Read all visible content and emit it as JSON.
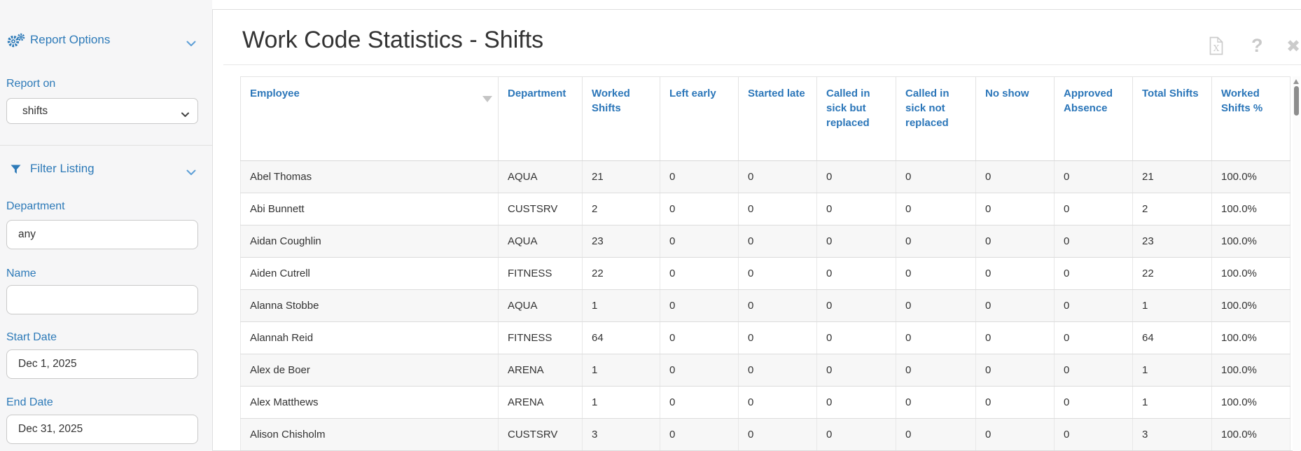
{
  "sidebar": {
    "report_options": {
      "label": "Report Options",
      "icon": "gears-icon"
    },
    "filter_listing": {
      "label": "Filter Listing",
      "icon": "filter-icon"
    },
    "report_on": {
      "label": "Report on",
      "value": "shifts"
    },
    "department": {
      "label": "Department",
      "value": "any"
    },
    "name": {
      "label": "Name",
      "value": ""
    },
    "start_date": {
      "label": "Start Date",
      "value": "Dec 1, 2025"
    },
    "end_date": {
      "label": "End Date",
      "value": "Dec 31, 2025"
    }
  },
  "main": {
    "title": "Work Code Statistics - Shifts",
    "toolbar": {
      "export_icon": "excel-export-icon",
      "export_glyph": "X",
      "help_icon": "help-icon",
      "help_glyph": "?",
      "close_icon": "close-icon",
      "close_glyph": "✖"
    }
  },
  "table": {
    "sorted_column": "Employee",
    "sort_direction": "descending",
    "columns": [
      "Employee",
      "Department",
      "Worked Shifts",
      "Left early",
      "Started late",
      "Called in sick but replaced",
      "Called in sick not replaced",
      "No show",
      "Approved Absence",
      "Total Shifts",
      "Worked Shifts %"
    ],
    "rows": [
      [
        "Abel Thomas",
        "AQUA",
        "21",
        "0",
        "0",
        "0",
        "0",
        "0",
        "0",
        "21",
        "100.0%"
      ],
      [
        "Abi Bunnett",
        "CUSTSRV",
        "2",
        "0",
        "0",
        "0",
        "0",
        "0",
        "0",
        "2",
        "100.0%"
      ],
      [
        "Aidan Coughlin",
        "AQUA",
        "23",
        "0",
        "0",
        "0",
        "0",
        "0",
        "0",
        "23",
        "100.0%"
      ],
      [
        "Aiden Cutrell",
        "FITNESS",
        "22",
        "0",
        "0",
        "0",
        "0",
        "0",
        "0",
        "22",
        "100.0%"
      ],
      [
        "Alanna Stobbe",
        "AQUA",
        "1",
        "0",
        "0",
        "0",
        "0",
        "0",
        "0",
        "1",
        "100.0%"
      ],
      [
        "Alannah Reid",
        "FITNESS",
        "64",
        "0",
        "0",
        "0",
        "0",
        "0",
        "0",
        "64",
        "100.0%"
      ],
      [
        "Alex de Boer",
        "ARENA",
        "1",
        "0",
        "0",
        "0",
        "0",
        "0",
        "0",
        "1",
        "100.0%"
      ],
      [
        "Alex Matthews",
        "ARENA",
        "1",
        "0",
        "0",
        "0",
        "0",
        "0",
        "0",
        "1",
        "100.0%"
      ],
      [
        "Alison Chisholm",
        "CUSTSRV",
        "3",
        "0",
        "0",
        "0",
        "0",
        "0",
        "0",
        "3",
        "100.0%"
      ]
    ]
  },
  "colors": {
    "accent_blue": "#2b76b9",
    "sidebar_label_blue": "#2d7ab8",
    "title_text": "#333333",
    "row_stripe": "#f7f7f7",
    "table_border": "#dcdcdc",
    "toolbar_icon_gray": "#c9c9c9",
    "sidebar_background": "#f6f6f7"
  }
}
